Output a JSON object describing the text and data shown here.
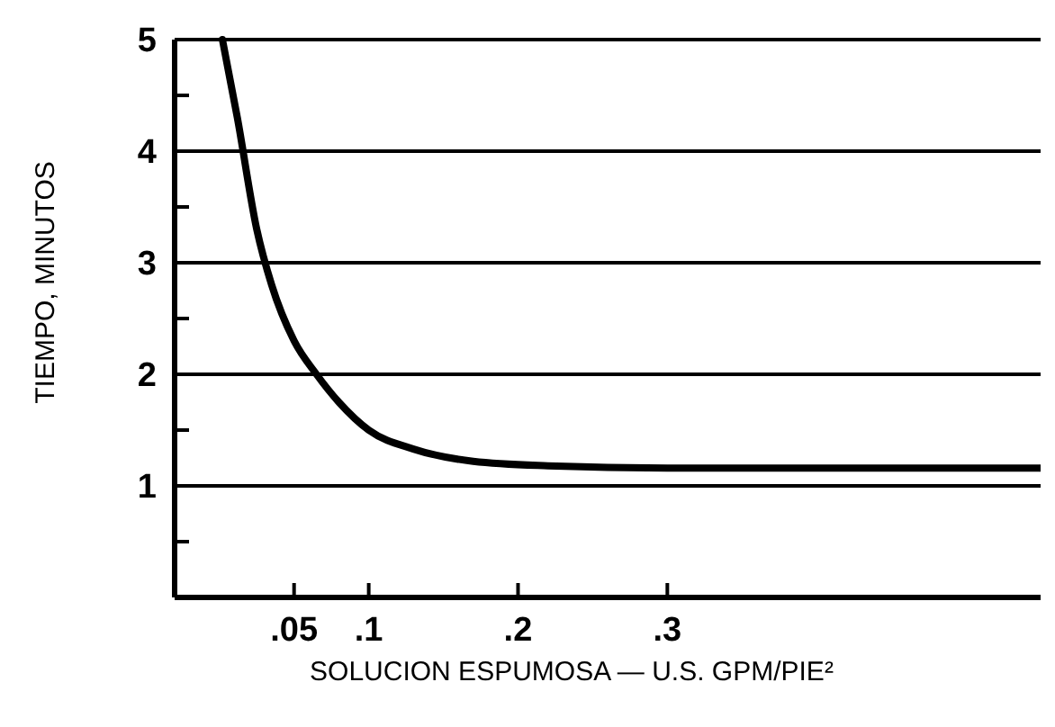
{
  "chart_data": {
    "type": "line",
    "xlabel": "SOLUCION ESPUMOSA — U.S. GPM/PIE²",
    "ylabel": "TIEMPO, MINUTOS",
    "x": [
      0.002,
      0.012,
      0.025,
      0.035,
      0.05,
      0.065,
      0.08,
      0.1,
      0.13,
      0.17,
      0.22,
      0.3,
      0.4,
      0.55
    ],
    "series": [
      {
        "color": "#000000",
        "values": [
          5,
          4.3,
          3.3,
          2.8,
          2.3,
          2.0,
          1.75,
          1.5,
          1.33,
          1.22,
          1.18,
          1.16,
          1.16,
          1.16
        ]
      }
    ],
    "xlim": [
      -0.03,
      0.55
    ],
    "ylim": [
      0,
      5
    ],
    "xticks": [
      {
        "value": 0.05,
        "label": ".05"
      },
      {
        "value": 0.1,
        "label": ".1"
      },
      {
        "value": 0.2,
        "label": ".2"
      },
      {
        "value": 0.3,
        "label": ".3"
      }
    ],
    "yticks": [
      {
        "value": 0.5,
        "label": null
      },
      1,
      {
        "value": 1.5,
        "label": null
      },
      2,
      {
        "value": 2.5,
        "label": null
      },
      3,
      {
        "value": 3.5,
        "label": null
      },
      4,
      {
        "value": 4.5,
        "label": null
      },
      5
    ],
    "grid": "y",
    "marker": "none",
    "line_style": "solid"
  }
}
